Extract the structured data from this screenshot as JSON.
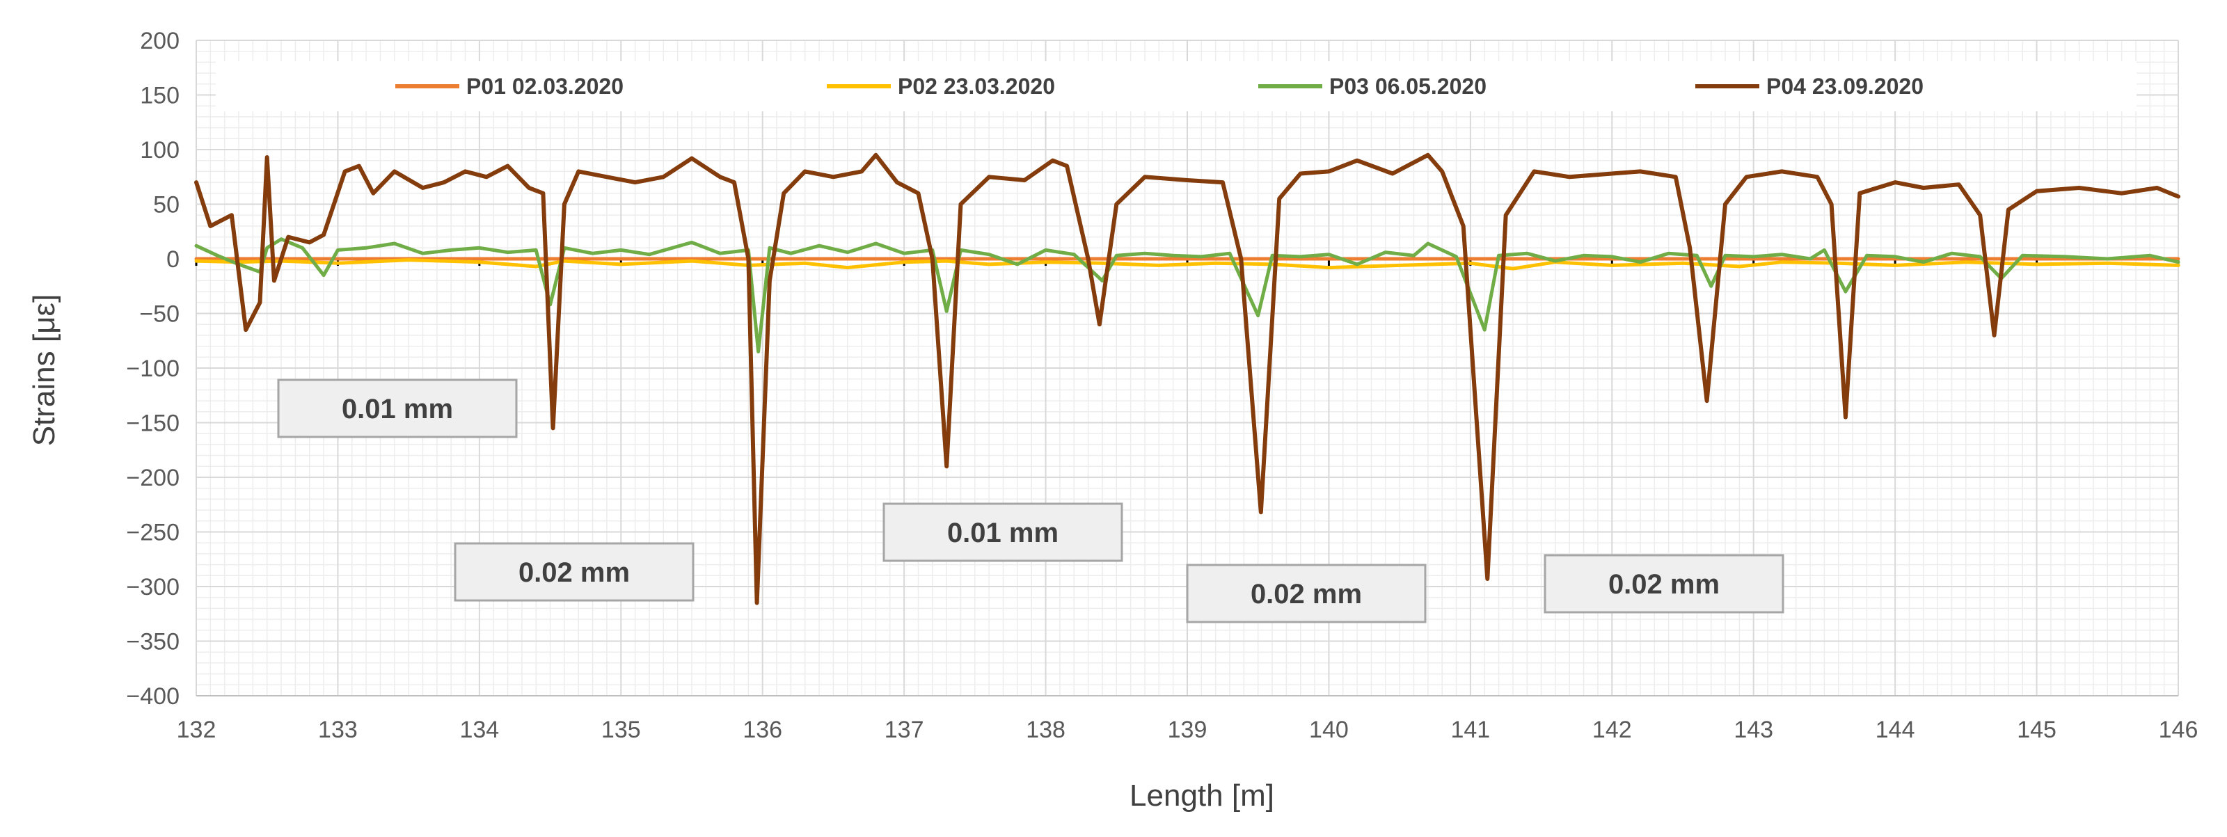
{
  "chart_data": {
    "type": "line",
    "title": "",
    "xlabel": "Length [m]",
    "ylabel": "Strains [με]",
    "xlim": [
      132,
      146
    ],
    "ylim": [
      -400,
      200
    ],
    "x_ticks": [
      "132",
      "133",
      "134",
      "135",
      "136",
      "137",
      "138",
      "139",
      "140",
      "141",
      "142",
      "143",
      "144",
      "145",
      "146"
    ],
    "y_ticks": [
      "200",
      "150",
      "100",
      "50",
      "0",
      "-50",
      "-100",
      "-150",
      "-200",
      "-250",
      "-300",
      "-350",
      "-400"
    ],
    "grid": true,
    "legend_position": "top",
    "series": [
      {
        "name": "P01 02.03.2020",
        "color": "#ED7D31",
        "points": [
          [
            132,
            0
          ],
          [
            146,
            0
          ]
        ]
      },
      {
        "name": "P02 23.03.2020",
        "color": "#FFC000",
        "points": [
          [
            132,
            -2
          ],
          [
            132.3,
            -3
          ],
          [
            132.6,
            -2
          ],
          [
            133,
            -4
          ],
          [
            133.5,
            -1
          ],
          [
            134,
            -3
          ],
          [
            134.4,
            -7
          ],
          [
            134.6,
            -2
          ],
          [
            135,
            -5
          ],
          [
            135.5,
            -2
          ],
          [
            135.9,
            -6
          ],
          [
            136.3,
            -4
          ],
          [
            136.6,
            -8
          ],
          [
            137,
            -3
          ],
          [
            137.3,
            -2
          ],
          [
            137.6,
            -5
          ],
          [
            138,
            -3
          ],
          [
            138.4,
            -4
          ],
          [
            138.8,
            -6
          ],
          [
            139.2,
            -4
          ],
          [
            139.6,
            -5
          ],
          [
            140,
            -8
          ],
          [
            140.5,
            -6
          ],
          [
            141,
            -4
          ],
          [
            141.3,
            -9
          ],
          [
            141.6,
            -3
          ],
          [
            142,
            -6
          ],
          [
            142.5,
            -4
          ],
          [
            142.9,
            -7
          ],
          [
            143.2,
            -3
          ],
          [
            143.6,
            -4
          ],
          [
            144,
            -6
          ],
          [
            144.5,
            -3
          ],
          [
            145,
            -5
          ],
          [
            145.5,
            -4
          ],
          [
            146,
            -6
          ]
        ]
      },
      {
        "name": "P03 06.05.2020",
        "color": "#70AD47",
        "points": [
          [
            132,
            12
          ],
          [
            132.15,
            3
          ],
          [
            132.3,
            -5
          ],
          [
            132.45,
            -12
          ],
          [
            132.5,
            10
          ],
          [
            132.6,
            18
          ],
          [
            132.75,
            10
          ],
          [
            132.9,
            -15
          ],
          [
            133,
            8
          ],
          [
            133.2,
            10
          ],
          [
            133.4,
            14
          ],
          [
            133.6,
            5
          ],
          [
            133.8,
            8
          ],
          [
            134,
            10
          ],
          [
            134.2,
            6
          ],
          [
            134.4,
            8
          ],
          [
            134.5,
            -42
          ],
          [
            134.6,
            10
          ],
          [
            134.8,
            5
          ],
          [
            135,
            8
          ],
          [
            135.2,
            4
          ],
          [
            135.5,
            15
          ],
          [
            135.7,
            5
          ],
          [
            135.9,
            8
          ],
          [
            135.97,
            -85
          ],
          [
            136.05,
            10
          ],
          [
            136.2,
            5
          ],
          [
            136.4,
            12
          ],
          [
            136.6,
            6
          ],
          [
            136.8,
            14
          ],
          [
            137,
            5
          ],
          [
            137.2,
            8
          ],
          [
            137.3,
            -48
          ],
          [
            137.4,
            8
          ],
          [
            137.6,
            4
          ],
          [
            137.8,
            -5
          ],
          [
            138,
            8
          ],
          [
            138.2,
            4
          ],
          [
            138.4,
            -20
          ],
          [
            138.5,
            3
          ],
          [
            138.7,
            5
          ],
          [
            138.9,
            3
          ],
          [
            139.1,
            2
          ],
          [
            139.3,
            5
          ],
          [
            139.5,
            -52
          ],
          [
            139.6,
            3
          ],
          [
            139.8,
            2
          ],
          [
            140,
            4
          ],
          [
            140.2,
            -5
          ],
          [
            140.4,
            6
          ],
          [
            140.6,
            3
          ],
          [
            140.7,
            14
          ],
          [
            140.9,
            2
          ],
          [
            141.1,
            -65
          ],
          [
            141.2,
            3
          ],
          [
            141.4,
            5
          ],
          [
            141.6,
            -2
          ],
          [
            141.8,
            3
          ],
          [
            142,
            2
          ],
          [
            142.2,
            -3
          ],
          [
            142.4,
            5
          ],
          [
            142.6,
            3
          ],
          [
            142.7,
            -25
          ],
          [
            142.8,
            3
          ],
          [
            143,
            2
          ],
          [
            143.2,
            4
          ],
          [
            143.4,
            0
          ],
          [
            143.5,
            8
          ],
          [
            143.65,
            -30
          ],
          [
            143.8,
            3
          ],
          [
            144,
            2
          ],
          [
            144.2,
            -3
          ],
          [
            144.4,
            5
          ],
          [
            144.6,
            2
          ],
          [
            144.75,
            -18
          ],
          [
            144.9,
            3
          ],
          [
            145.2,
            2
          ],
          [
            145.5,
            0
          ],
          [
            145.8,
            3
          ],
          [
            146,
            -3
          ]
        ]
      },
      {
        "name": "P04 23.09.2020",
        "color": "#843C0C",
        "points": [
          [
            132,
            70
          ],
          [
            132.1,
            30
          ],
          [
            132.25,
            40
          ],
          [
            132.35,
            -65
          ],
          [
            132.45,
            -40
          ],
          [
            132.5,
            93
          ],
          [
            132.55,
            -20
          ],
          [
            132.65,
            20
          ],
          [
            132.8,
            15
          ],
          [
            132.9,
            22
          ],
          [
            133.05,
            80
          ],
          [
            133.15,
            85
          ],
          [
            133.25,
            60
          ],
          [
            133.4,
            80
          ],
          [
            133.6,
            65
          ],
          [
            133.75,
            70
          ],
          [
            133.9,
            80
          ],
          [
            134.05,
            75
          ],
          [
            134.2,
            85
          ],
          [
            134.35,
            65
          ],
          [
            134.45,
            60
          ],
          [
            134.52,
            -155
          ],
          [
            134.6,
            50
          ],
          [
            134.7,
            80
          ],
          [
            134.9,
            75
          ],
          [
            135.1,
            70
          ],
          [
            135.3,
            75
          ],
          [
            135.5,
            92
          ],
          [
            135.7,
            75
          ],
          [
            135.8,
            70
          ],
          [
            135.9,
            0
          ],
          [
            135.96,
            -315
          ],
          [
            136.05,
            -20
          ],
          [
            136.15,
            60
          ],
          [
            136.3,
            80
          ],
          [
            136.5,
            75
          ],
          [
            136.7,
            80
          ],
          [
            136.8,
            95
          ],
          [
            136.95,
            70
          ],
          [
            137.1,
            60
          ],
          [
            137.2,
            0
          ],
          [
            137.3,
            -190
          ],
          [
            137.4,
            50
          ],
          [
            137.6,
            75
          ],
          [
            137.85,
            72
          ],
          [
            138.05,
            90
          ],
          [
            138.15,
            85
          ],
          [
            138.3,
            0
          ],
          [
            138.38,
            -60
          ],
          [
            138.5,
            50
          ],
          [
            138.7,
            75
          ],
          [
            139,
            72
          ],
          [
            139.25,
            70
          ],
          [
            139.38,
            0
          ],
          [
            139.52,
            -232
          ],
          [
            139.65,
            55
          ],
          [
            139.8,
            78
          ],
          [
            140.0,
            80
          ],
          [
            140.2,
            90
          ],
          [
            140.45,
            78
          ],
          [
            140.7,
            95
          ],
          [
            140.8,
            80
          ],
          [
            140.95,
            30
          ],
          [
            141.12,
            -293
          ],
          [
            141.25,
            40
          ],
          [
            141.45,
            80
          ],
          [
            141.7,
            75
          ],
          [
            142.0,
            78
          ],
          [
            142.2,
            80
          ],
          [
            142.45,
            75
          ],
          [
            142.55,
            10
          ],
          [
            142.67,
            -130
          ],
          [
            142.8,
            50
          ],
          [
            142.95,
            75
          ],
          [
            143.2,
            80
          ],
          [
            143.45,
            75
          ],
          [
            143.55,
            50
          ],
          [
            143.65,
            -145
          ],
          [
            143.75,
            60
          ],
          [
            144.0,
            70
          ],
          [
            144.2,
            65
          ],
          [
            144.45,
            68
          ],
          [
            144.6,
            40
          ],
          [
            144.7,
            -70
          ],
          [
            144.8,
            45
          ],
          [
            145.0,
            62
          ],
          [
            145.3,
            65
          ],
          [
            145.6,
            60
          ],
          [
            145.85,
            65
          ],
          [
            146,
            57
          ]
        ]
      }
    ],
    "annotations": [
      "0.01 mm",
      "0.02 mm",
      "0.01 mm",
      "0.02 mm",
      "0.02 mm"
    ]
  }
}
